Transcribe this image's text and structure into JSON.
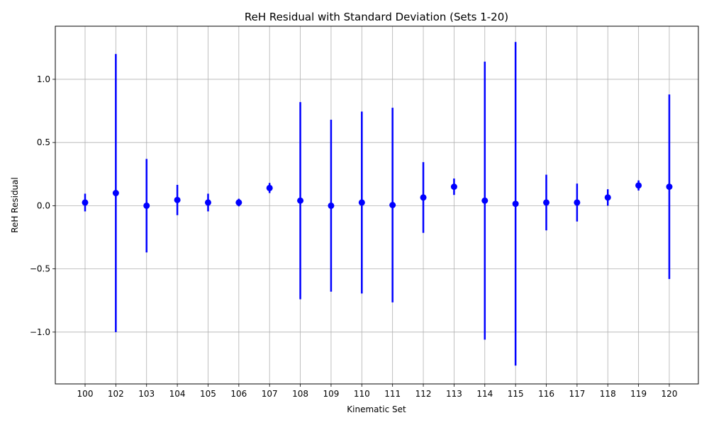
{
  "chart_data": {
    "type": "scatter",
    "title": "ReH Residual with Standard Deviation (Sets 1-20)",
    "xlabel": "Kinematic Set",
    "ylabel": "ReH Residual",
    "categories": [
      "100",
      "102",
      "103",
      "104",
      "105",
      "106",
      "107",
      "108",
      "109",
      "110",
      "111",
      "112",
      "113",
      "114",
      "115",
      "116",
      "117",
      "118",
      "119",
      "120"
    ],
    "series": [
      {
        "values": [
          0.025,
          0.1,
          0.0,
          0.045,
          0.025,
          0.025,
          0.14,
          0.04,
          0.0,
          0.025,
          0.005,
          0.065,
          0.15,
          0.04,
          0.015,
          0.025,
          0.025,
          0.065,
          0.16,
          0.15
        ],
        "errors": [
          0.07,
          1.1,
          0.37,
          0.12,
          0.07,
          0.03,
          0.04,
          0.78,
          0.68,
          0.72,
          0.77,
          0.28,
          0.065,
          1.1,
          1.28,
          0.22,
          0.15,
          0.065,
          0.04,
          0.73
        ],
        "color": "#0000ff"
      }
    ],
    "yticks": [
      -1.0,
      -0.5,
      0.0,
      0.5,
      1.0
    ],
    "ytick_labels": [
      "−1.0",
      "−0.5",
      "0.0",
      "0.5",
      "1.0"
    ],
    "ylim": [
      -1.41,
      1.42
    ],
    "grid": true,
    "grid_color": "#b0b0b0",
    "legend": "none"
  }
}
